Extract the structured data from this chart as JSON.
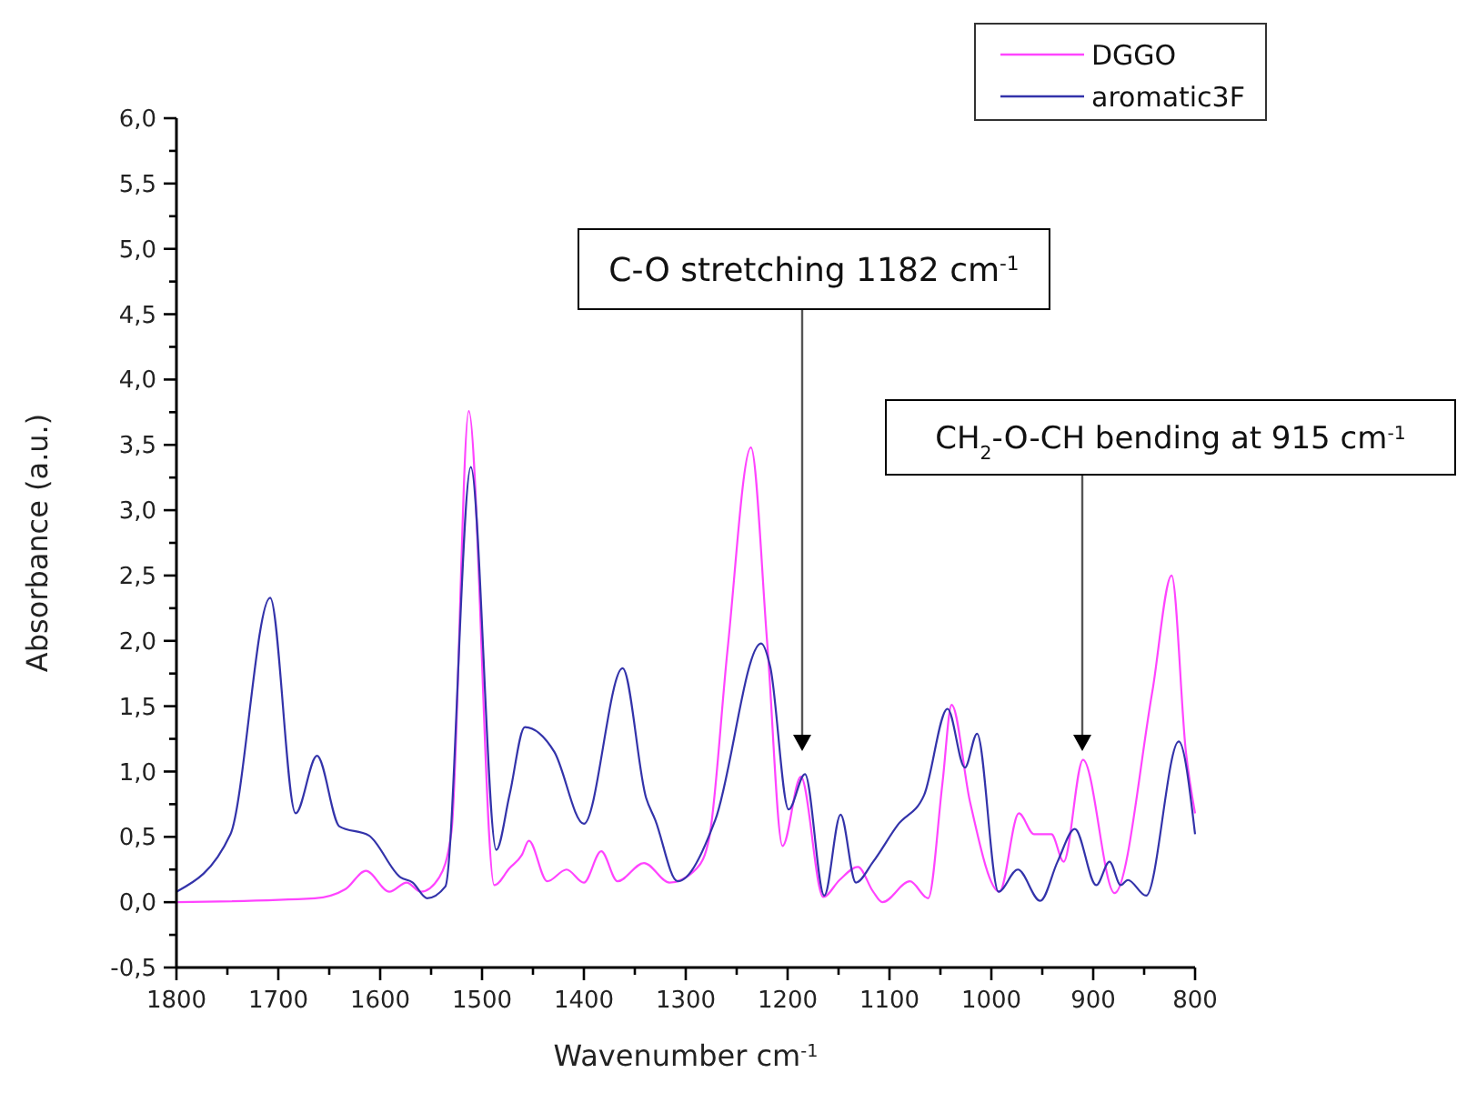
{
  "chart_data": {
    "type": "line",
    "xlabel": "Wavenumber cm$^{-1}$",
    "ylabel": "Absorbance (a.u.)",
    "xlim": [
      1800,
      800
    ],
    "ylim": [
      -0.5,
      6
    ],
    "xticks": [
      1800,
      {
        "value": 1750,
        "label": null
      },
      1700,
      {
        "value": 1650,
        "label": null
      },
      1600,
      {
        "value": 1550,
        "label": null
      },
      1500,
      {
        "value": 1450,
        "label": null
      },
      1400,
      {
        "value": 1350,
        "label": null
      },
      1300,
      {
        "value": 1250,
        "label": null
      },
      1200,
      {
        "value": 1150,
        "label": null
      },
      1100,
      {
        "value": 1050,
        "label": null
      },
      1000,
      {
        "value": 950,
        "label": null
      },
      900,
      {
        "value": 850,
        "label": null
      },
      800
    ],
    "yticks": [
      {
        "value": -0.5,
        "label": "-0,5"
      },
      {
        "value": -0.25,
        "label": null
      },
      {
        "value": 0,
        "label": "0,0"
      },
      {
        "value": 0.25,
        "label": null
      },
      {
        "value": 0.5,
        "label": "0,5"
      },
      {
        "value": 0.75,
        "label": null
      },
      {
        "value": 1,
        "label": "1,0"
      },
      {
        "value": 1.25,
        "label": null
      },
      {
        "value": 1.5,
        "label": "1,5"
      },
      {
        "value": 1.75,
        "label": null
      },
      {
        "value": 2,
        "label": "2,0"
      },
      {
        "value": 2.25,
        "label": null
      },
      {
        "value": 2.5,
        "label": "2,5"
      },
      {
        "value": 2.75,
        "label": null
      },
      {
        "value": 3,
        "label": "3,0"
      },
      {
        "value": 3.25,
        "label": null
      },
      {
        "value": 3.5,
        "label": "3,5"
      },
      {
        "value": 3.75,
        "label": null
      },
      {
        "value": 4,
        "label": "4,0"
      },
      {
        "value": 4.25,
        "label": null
      },
      {
        "value": 4.5,
        "label": "4,5"
      },
      {
        "value": 4.75,
        "label": null
      },
      {
        "value": 5,
        "label": "5,0"
      },
      {
        "value": 5.25,
        "label": null
      },
      {
        "value": 5.5,
        "label": "5,5"
      },
      {
        "value": 5.75,
        "label": null
      },
      {
        "value": 6,
        "label": "6,0"
      }
    ],
    "grid": false,
    "legend": "top right",
    "line_style": "solid",
    "marker": "none",
    "annotations": [
      "C-O stretching 1182 cm$^{-1}$",
      "CH$_{2}$-O-CH bending at 915 cm$^{-1}$"
    ],
    "series": [
      {
        "name": "DGGO",
        "color": "#ff44ff",
        "x": [
          1800,
          1664,
          1634,
          1614,
          1591,
          1574,
          1560,
          1542,
          1530,
          1513,
          1488,
          1473,
          1461,
          1454,
          1436,
          1417,
          1400,
          1383,
          1367,
          1341,
          1316,
          1289,
          1277,
          1259,
          1236,
          1220,
          1205,
          1187,
          1165,
          1149,
          1131,
          1116,
          1107,
          1080,
          1062,
          1048,
          1039,
          1021,
          992,
          973,
          958,
          941,
          929,
          910,
          879,
          842,
          823,
          809,
          800
        ],
        "values": [
          0.0,
          0.03,
          0.1,
          0.24,
          0.08,
          0.15,
          0.08,
          0.19,
          0.54,
          3.76,
          0.13,
          0.26,
          0.36,
          0.47,
          0.16,
          0.25,
          0.15,
          0.39,
          0.16,
          0.3,
          0.15,
          0.26,
          0.49,
          1.93,
          3.48,
          1.98,
          0.43,
          0.96,
          0.04,
          0.17,
          0.27,
          0.08,
          0.0,
          0.16,
          0.03,
          0.91,
          1.51,
          0.77,
          0.08,
          0.68,
          0.52,
          0.52,
          0.31,
          1.09,
          0.07,
          1.61,
          2.5,
          1.15,
          0.68
        ]
      },
      {
        "name": "aromatic3F",
        "color": "#3333aa",
        "x": [
          1800,
          1747,
          1708,
          1683,
          1662,
          1640,
          1611,
          1580,
          1568,
          1554,
          1536,
          1511,
          1486,
          1473,
          1458,
          1429,
          1400,
          1362,
          1339,
          1330,
          1308,
          1271,
          1226,
          1217,
          1199,
          1183,
          1164,
          1148,
          1133,
          1116,
          1092,
          1066,
          1043,
          1026,
          1014,
          993,
          974,
          952,
          935,
          918,
          897,
          884,
          873,
          866,
          848,
          816,
          800
        ],
        "values": [
          0.08,
          0.52,
          2.33,
          0.68,
          1.12,
          0.58,
          0.51,
          0.19,
          0.15,
          0.03,
          0.12,
          3.33,
          0.4,
          0.82,
          1.34,
          1.15,
          0.6,
          1.79,
          0.8,
          0.63,
          0.16,
          0.63,
          1.98,
          1.8,
          0.71,
          0.98,
          0.05,
          0.67,
          0.15,
          0.31,
          0.59,
          0.82,
          1.48,
          1.03,
          1.29,
          0.08,
          0.25,
          0.01,
          0.31,
          0.56,
          0.13,
          0.31,
          0.13,
          0.17,
          0.05,
          1.23,
          0.52
        ]
      }
    ]
  }
}
